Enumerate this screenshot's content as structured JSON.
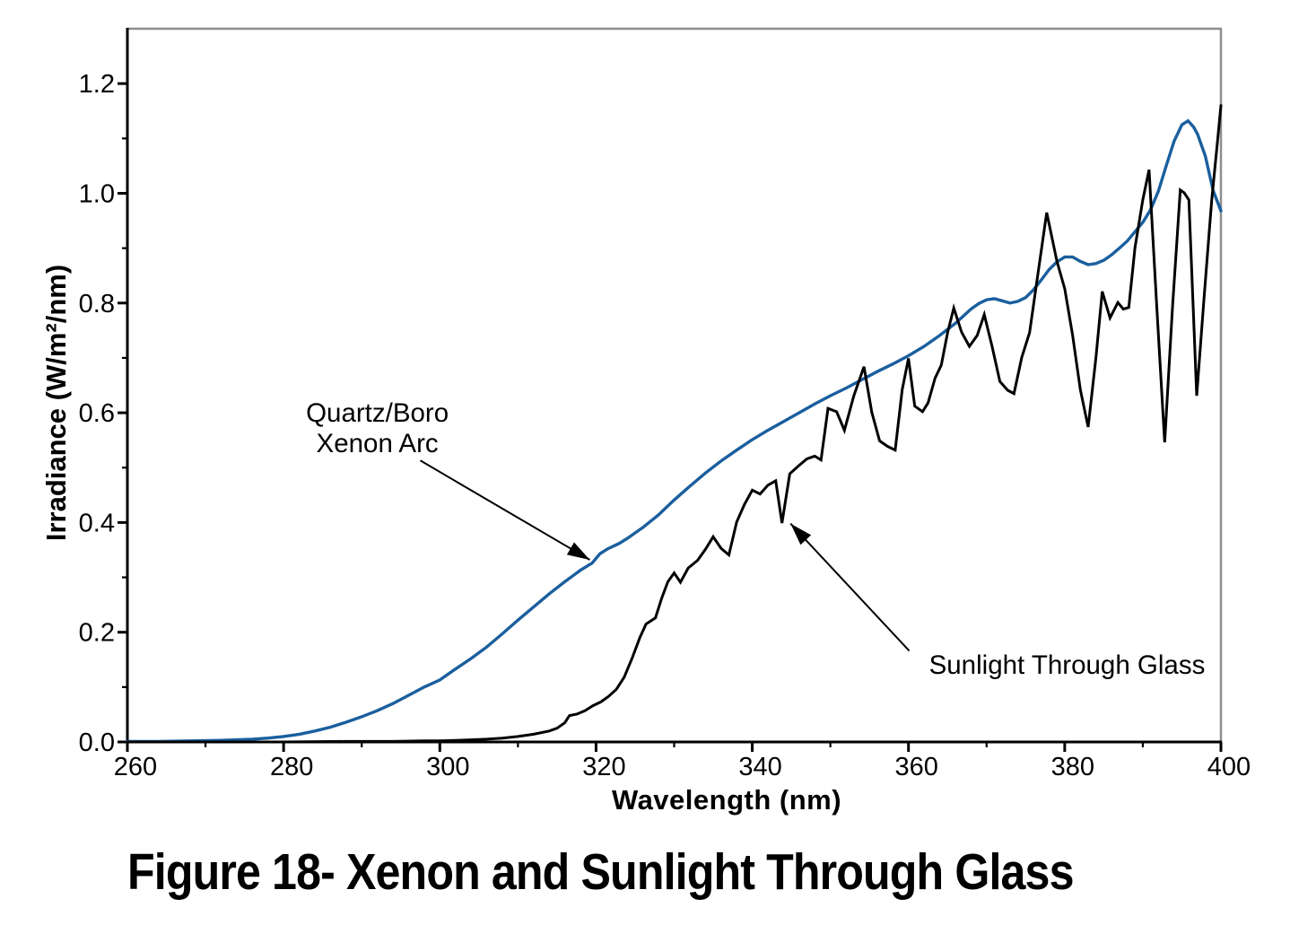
{
  "figure": {
    "caption": "Figure 18- Xenon and Sunlight Through Glass"
  },
  "colors": {
    "xenon_blue": "#1A5F9E",
    "curve_black": "#000000",
    "frame_gray": "#8E8E8E",
    "axis_black": "#000000",
    "background": "#FFFFFF"
  },
  "chart_data": {
    "type": "line",
    "title": "",
    "xlabel": "Wavelength (nm)",
    "ylabel": "Irradiance (W/m²/nm)",
    "xlim": [
      260,
      400
    ],
    "ylim": [
      0,
      1.3
    ],
    "grid": false,
    "legend": "inline-annotations",
    "x_major_ticks": [
      260,
      280,
      300,
      320,
      340,
      360,
      380,
      400
    ],
    "x_minor_ticks": [
      270,
      290,
      310,
      330,
      350,
      370,
      390
    ],
    "y_major_ticks": [
      {
        "label": "0.0",
        "value": 0.0
      },
      {
        "label": "0.2",
        "value": 0.2
      },
      {
        "label": "0.4",
        "value": 0.4
      },
      {
        "label": "0.6",
        "value": 0.6
      },
      {
        "label": "0.8",
        "value": 0.8
      },
      {
        "label": "1.0",
        "value": 1.0
      },
      {
        "label": "1.2",
        "value": 1.2
      }
    ],
    "y_minor_ticks": [
      0.1,
      0.3,
      0.5,
      0.7,
      0.9,
      1.1
    ],
    "series": [
      {
        "id": "xenon-arc",
        "name": "Quartz/Boro Xenon Arc",
        "color": "#1A5F9E",
        "stroke_width": 3.4,
        "points": [
          [
            260,
            0.001
          ],
          [
            264,
            0.001
          ],
          [
            268,
            0.002
          ],
          [
            272,
            0.003
          ],
          [
            276,
            0.005
          ],
          [
            278,
            0.007
          ],
          [
            280,
            0.01
          ],
          [
            282,
            0.014
          ],
          [
            284,
            0.02
          ],
          [
            286,
            0.027
          ],
          [
            288,
            0.036
          ],
          [
            290,
            0.046
          ],
          [
            292,
            0.057
          ],
          [
            294,
            0.07
          ],
          [
            296,
            0.085
          ],
          [
            298,
            0.1
          ],
          [
            300,
            0.113
          ],
          [
            302,
            0.133
          ],
          [
            304,
            0.152
          ],
          [
            306,
            0.173
          ],
          [
            308,
            0.197
          ],
          [
            310,
            0.222
          ],
          [
            312,
            0.246
          ],
          [
            314,
            0.27
          ],
          [
            316,
            0.292
          ],
          [
            318,
            0.313
          ],
          [
            319.5,
            0.326
          ],
          [
            320.5,
            0.343
          ],
          [
            321.5,
            0.352
          ],
          [
            323,
            0.362
          ],
          [
            324,
            0.371
          ],
          [
            326,
            0.391
          ],
          [
            328,
            0.414
          ],
          [
            330,
            0.441
          ],
          [
            332,
            0.466
          ],
          [
            334,
            0.49
          ],
          [
            336,
            0.512
          ],
          [
            338,
            0.532
          ],
          [
            340,
            0.551
          ],
          [
            342,
            0.568
          ],
          [
            344,
            0.584
          ],
          [
            346,
            0.6
          ],
          [
            348,
            0.616
          ],
          [
            350,
            0.631
          ],
          [
            352,
            0.645
          ],
          [
            354,
            0.66
          ],
          [
            356,
            0.675
          ],
          [
            358,
            0.689
          ],
          [
            360,
            0.704
          ],
          [
            362,
            0.721
          ],
          [
            364,
            0.741
          ],
          [
            366,
            0.763
          ],
          [
            368,
            0.789
          ],
          [
            369,
            0.799
          ],
          [
            370,
            0.806
          ],
          [
            371,
            0.808
          ],
          [
            372,
            0.804
          ],
          [
            373,
            0.8
          ],
          [
            374,
            0.803
          ],
          [
            375,
            0.81
          ],
          [
            376,
            0.824
          ],
          [
            377,
            0.842
          ],
          [
            378,
            0.861
          ],
          [
            379,
            0.875
          ],
          [
            380,
            0.884
          ],
          [
            381,
            0.884
          ],
          [
            382,
            0.876
          ],
          [
            383,
            0.87
          ],
          [
            384,
            0.872
          ],
          [
            385,
            0.878
          ],
          [
            386,
            0.888
          ],
          [
            387,
            0.9
          ],
          [
            388,
            0.913
          ],
          [
            389,
            0.93
          ],
          [
            390,
            0.947
          ],
          [
            391,
            0.97
          ],
          [
            392,
            1.004
          ],
          [
            393,
            1.05
          ],
          [
            394,
            1.095
          ],
          [
            395,
            1.125
          ],
          [
            395.8,
            1.132
          ],
          [
            396.5,
            1.121
          ],
          [
            397,
            1.108
          ],
          [
            398,
            1.068
          ],
          [
            399,
            1.005
          ],
          [
            400,
            0.968
          ]
        ]
      },
      {
        "id": "sunlight",
        "name": "Sunlight Through Glass",
        "color": "#000000",
        "stroke_width": 3,
        "points": [
          [
            260,
            0
          ],
          [
            270,
            0
          ],
          [
            280,
            0
          ],
          [
            288,
            0.001
          ],
          [
            294,
            0.001
          ],
          [
            298,
            0.002
          ],
          [
            300,
            0.002
          ],
          [
            302,
            0.003
          ],
          [
            304,
            0.004
          ],
          [
            306,
            0.005
          ],
          [
            308,
            0.007
          ],
          [
            310,
            0.01
          ],
          [
            312,
            0.014
          ],
          [
            314,
            0.02
          ],
          [
            315,
            0.025
          ],
          [
            316,
            0.035
          ],
          [
            316.6,
            0.048
          ],
          [
            317.6,
            0.051
          ],
          [
            318.6,
            0.057
          ],
          [
            319.6,
            0.066
          ],
          [
            320.6,
            0.073
          ],
          [
            321.6,
            0.083
          ],
          [
            322.6,
            0.096
          ],
          [
            323.6,
            0.118
          ],
          [
            324.6,
            0.152
          ],
          [
            325.6,
            0.19
          ],
          [
            326.4,
            0.215
          ],
          [
            327.6,
            0.226
          ],
          [
            328.4,
            0.262
          ],
          [
            329.2,
            0.292
          ],
          [
            330,
            0.308
          ],
          [
            330.8,
            0.291
          ],
          [
            331.8,
            0.317
          ],
          [
            333,
            0.331
          ],
          [
            334,
            0.351
          ],
          [
            335,
            0.374
          ],
          [
            336,
            0.353
          ],
          [
            337,
            0.341
          ],
          [
            338,
            0.401
          ],
          [
            339,
            0.433
          ],
          [
            340,
            0.459
          ],
          [
            341,
            0.452
          ],
          [
            342,
            0.468
          ],
          [
            343,
            0.476
          ],
          [
            343.8,
            0.399
          ],
          [
            344.8,
            0.489
          ],
          [
            346,
            0.504
          ],
          [
            347,
            0.516
          ],
          [
            348,
            0.521
          ],
          [
            348.8,
            0.514
          ],
          [
            349.7,
            0.608
          ],
          [
            350.8,
            0.602
          ],
          [
            351.8,
            0.568
          ],
          [
            353,
            0.631
          ],
          [
            354.3,
            0.684
          ],
          [
            355.3,
            0.601
          ],
          [
            356.3,
            0.549
          ],
          [
            357.3,
            0.539
          ],
          [
            358.3,
            0.532
          ],
          [
            359.2,
            0.642
          ],
          [
            360,
            0.699
          ],
          [
            360.8,
            0.612
          ],
          [
            361.8,
            0.602
          ],
          [
            362.5,
            0.618
          ],
          [
            363.4,
            0.663
          ],
          [
            364.2,
            0.687
          ],
          [
            365,
            0.746
          ],
          [
            365.8,
            0.791
          ],
          [
            366.8,
            0.747
          ],
          [
            367.8,
            0.721
          ],
          [
            368.8,
            0.741
          ],
          [
            369.7,
            0.779
          ],
          [
            370.7,
            0.721
          ],
          [
            371.7,
            0.657
          ],
          [
            372.7,
            0.641
          ],
          [
            373.5,
            0.635
          ],
          [
            374.5,
            0.701
          ],
          [
            375.5,
            0.746
          ],
          [
            376.5,
            0.846
          ],
          [
            377.7,
            0.965
          ],
          [
            379,
            0.876
          ],
          [
            380,
            0.826
          ],
          [
            381,
            0.742
          ],
          [
            382,
            0.642
          ],
          [
            383,
            0.574
          ],
          [
            384,
            0.701
          ],
          [
            384.8,
            0.821
          ],
          [
            385.8,
            0.773
          ],
          [
            386.8,
            0.801
          ],
          [
            387.5,
            0.789
          ],
          [
            388.2,
            0.792
          ],
          [
            389,
            0.901
          ],
          [
            390,
            0.988
          ],
          [
            390.8,
            1.043
          ],
          [
            391.8,
            0.79
          ],
          [
            392.8,
            0.546
          ],
          [
            393.8,
            0.792
          ],
          [
            394.8,
            1.006
          ],
          [
            395.3,
            1.001
          ],
          [
            395.9,
            0.988
          ],
          [
            396.9,
            0.631
          ],
          [
            397.8,
            0.801
          ],
          [
            398.8,
            0.985
          ],
          [
            399.6,
            1.1
          ],
          [
            400,
            1.16
          ]
        ]
      }
    ],
    "annotations": [
      {
        "id": "xenon",
        "lines": [
          "Quartz/Boro",
          "Xenon Arc"
        ],
        "label_anchor": {
          "wavelength": 292,
          "value": 0.57
        },
        "arrow": {
          "from": {
            "wavelength": 297.5,
            "value": 0.513
          },
          "to": {
            "wavelength": 319.2,
            "value": 0.332
          }
        }
      },
      {
        "id": "sunlight",
        "lines": [
          "Sunlight Through Glass"
        ],
        "label_anchor": {
          "wavelength": 380.3,
          "value": 0.139
        },
        "arrow": {
          "from": {
            "wavelength": 360.1,
            "value": 0.166
          },
          "to": {
            "wavelength": 344.9,
            "value": 0.398
          }
        }
      }
    ]
  }
}
